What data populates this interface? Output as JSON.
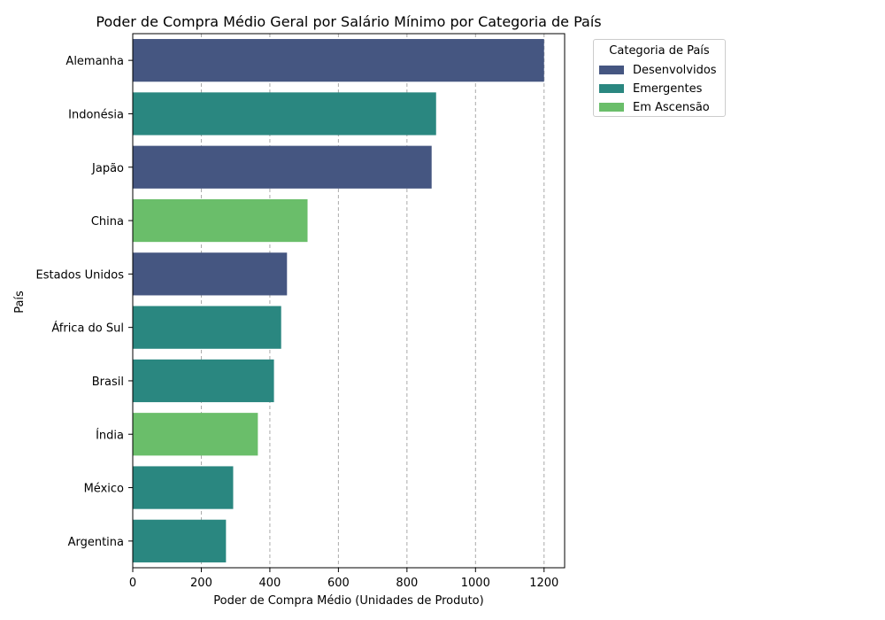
{
  "chart_data": {
    "type": "bar",
    "orientation": "horizontal",
    "title": "Poder de Compra Médio Geral por Salário Mínimo por Categoria de País",
    "xlabel": "Poder de Compra Médio (Unidades de Produto)",
    "ylabel": "País",
    "xlim": [
      0,
      1260
    ],
    "xticks": [
      0,
      200,
      400,
      600,
      800,
      1000,
      1200
    ],
    "grid": "x-dashed",
    "legend_title": "Categoria de País",
    "legend_placement": "outside-top-right",
    "category_colors": {
      "Desenvolvidos": "#455681",
      "Emergentes": "#2a8780",
      "Em Ascensão": "#6abe6a"
    },
    "legend_order": [
      "Desenvolvidos",
      "Emergentes",
      "Em Ascensão"
    ],
    "categories": [
      "Alemanha",
      "Indonésia",
      "Japão",
      "China",
      "Estados Unidos",
      "África do Sul",
      "Brasil",
      "Índia",
      "México",
      "Argentina"
    ],
    "values": [
      1200,
      885,
      872,
      510,
      450,
      433,
      412,
      365,
      293,
      272
    ],
    "groups": [
      "Desenvolvidos",
      "Emergentes",
      "Desenvolvidos",
      "Em Ascensão",
      "Desenvolvidos",
      "Emergentes",
      "Emergentes",
      "Em Ascensão",
      "Emergentes",
      "Emergentes"
    ]
  }
}
